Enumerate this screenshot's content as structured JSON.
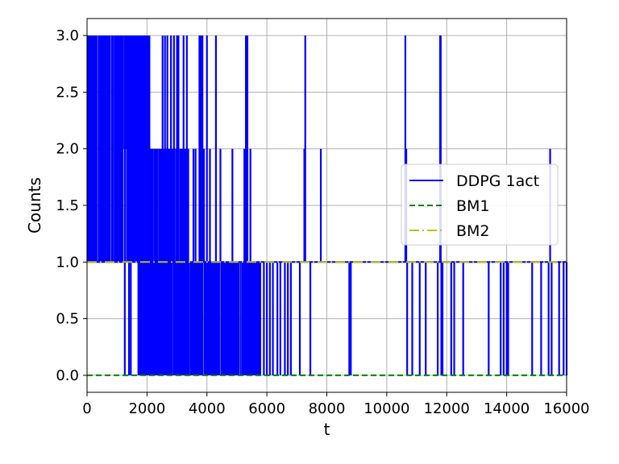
{
  "chart_data": {
    "type": "line",
    "xlabel": "t",
    "ylabel": "Counts",
    "xlim": [
      0,
      16000
    ],
    "ylim": [
      -0.15,
      3.15
    ],
    "x_ticks": [
      0,
      2000,
      4000,
      6000,
      8000,
      10000,
      12000,
      14000,
      16000
    ],
    "x_tick_labels": [
      "0",
      "2000",
      "4000",
      "6000",
      "8000",
      "10000",
      "12000",
      "14000",
      "16000"
    ],
    "y_ticks": [
      0.0,
      0.5,
      1.0,
      1.5,
      2.0,
      2.5,
      3.0
    ],
    "y_tick_labels": [
      "0.0",
      "0.5",
      "1.0",
      "1.5",
      "2.0",
      "2.5",
      "3.0"
    ],
    "grid": true,
    "legend_position": "center-right",
    "series": [
      {
        "name": "DDPG 1act",
        "color": "#0000ff",
        "style": "solid",
        "segments": [
          {
            "x_range": [
              0,
              1200
            ],
            "values": [
              1,
              3
            ]
          },
          {
            "x_range": [
              1200,
              2100
            ],
            "values": [
              1,
              2,
              3
            ]
          },
          {
            "x_range": [
              1700,
              2100
            ],
            "values": [
              0,
              1,
              2,
              3
            ]
          },
          {
            "x_range": [
              2100,
              3400
            ],
            "values": [
              0,
              1,
              2
            ]
          },
          {
            "x_range": [
              3400,
              5800
            ],
            "values": [
              0,
              1
            ]
          }
        ],
        "spikes": [
          {
            "x": 1260,
            "y": 0
          },
          {
            "x": 1400,
            "y": 0
          },
          {
            "x": 1460,
            "y": 0
          },
          {
            "x": 1180,
            "y": 2
          },
          {
            "x": 2520,
            "y": 3
          },
          {
            "x": 2600,
            "y": 3
          },
          {
            "x": 2680,
            "y": 3
          },
          {
            "x": 2800,
            "y": 3
          },
          {
            "x": 2900,
            "y": 3
          },
          {
            "x": 3000,
            "y": 3
          },
          {
            "x": 3050,
            "y": 3
          },
          {
            "x": 3220,
            "y": 3
          },
          {
            "x": 3330,
            "y": 3
          },
          {
            "x": 3750,
            "y": 3
          },
          {
            "x": 3800,
            "y": 3
          },
          {
            "x": 3850,
            "y": 3
          },
          {
            "x": 4000,
            "y": 3
          },
          {
            "x": 4300,
            "y": 3
          },
          {
            "x": 5300,
            "y": 3
          },
          {
            "x": 5350,
            "y": 3
          },
          {
            "x": 3550,
            "y": 2
          },
          {
            "x": 3620,
            "y": 2
          },
          {
            "x": 3900,
            "y": 2
          },
          {
            "x": 4100,
            "y": 2
          },
          {
            "x": 4450,
            "y": 2
          },
          {
            "x": 4850,
            "y": 2
          },
          {
            "x": 5250,
            "y": 2
          },
          {
            "x": 5450,
            "y": 2
          },
          {
            "x": 5900,
            "y": 0
          },
          {
            "x": 6000,
            "y": 0
          },
          {
            "x": 6100,
            "y": 0
          },
          {
            "x": 6200,
            "y": 0
          },
          {
            "x": 6350,
            "y": 0
          },
          {
            "x": 6450,
            "y": 0
          },
          {
            "x": 6600,
            "y": 0
          },
          {
            "x": 6700,
            "y": 0
          },
          {
            "x": 6800,
            "y": 0
          },
          {
            "x": 7100,
            "y": 0
          },
          {
            "x": 7250,
            "y": 2
          },
          {
            "x": 7280,
            "y": 3
          },
          {
            "x": 7450,
            "y": 0
          },
          {
            "x": 7800,
            "y": 2
          },
          {
            "x": 8750,
            "y": 0
          },
          {
            "x": 8800,
            "y": 0
          },
          {
            "x": 10620,
            "y": 3
          },
          {
            "x": 10650,
            "y": 2
          },
          {
            "x": 10680,
            "y": 0
          },
          {
            "x": 10850,
            "y": 0
          },
          {
            "x": 11100,
            "y": 0
          },
          {
            "x": 11300,
            "y": 0
          },
          {
            "x": 11700,
            "y": 0
          },
          {
            "x": 11780,
            "y": 3
          },
          {
            "x": 11800,
            "y": 3
          },
          {
            "x": 11820,
            "y": 0
          },
          {
            "x": 11860,
            "y": 0
          },
          {
            "x": 12150,
            "y": 0
          },
          {
            "x": 12250,
            "y": 0
          },
          {
            "x": 12550,
            "y": 0
          },
          {
            "x": 13400,
            "y": 0
          },
          {
            "x": 13800,
            "y": 0
          },
          {
            "x": 13900,
            "y": 0
          },
          {
            "x": 14000,
            "y": 0
          },
          {
            "x": 14050,
            "y": 0
          },
          {
            "x": 14850,
            "y": 0
          },
          {
            "x": 15150,
            "y": 0
          },
          {
            "x": 15400,
            "y": 0
          },
          {
            "x": 15450,
            "y": 2
          },
          {
            "x": 15500,
            "y": 0
          },
          {
            "x": 15750,
            "y": 0
          },
          {
            "x": 15900,
            "y": 0
          },
          {
            "x": 16000,
            "y": 0
          }
        ],
        "baseline": 1
      },
      {
        "name": "BM1",
        "color": "#008000",
        "style": "dashed",
        "x": [
          0,
          16000
        ],
        "y": [
          0,
          0
        ]
      },
      {
        "name": "BM2",
        "color": "#bfbf00",
        "style": "dashdot",
        "x": [
          0,
          16000
        ],
        "y": [
          1,
          1
        ]
      }
    ]
  }
}
